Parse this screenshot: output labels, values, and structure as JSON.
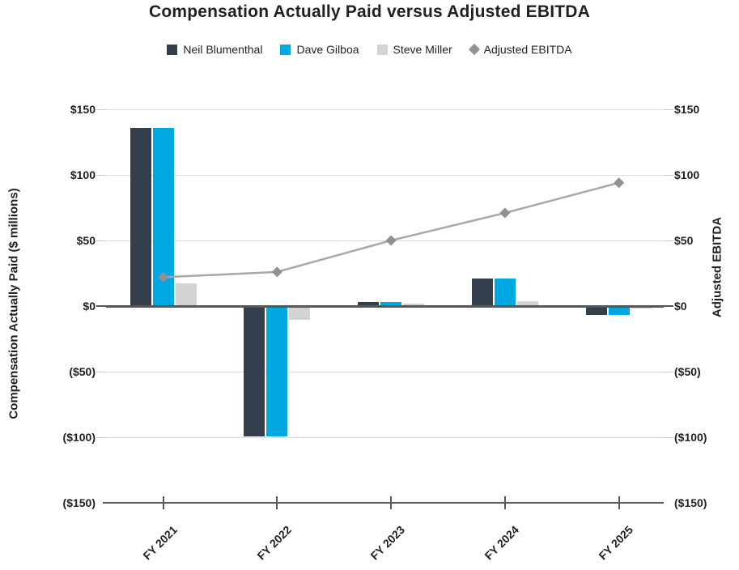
{
  "title": "Compensation Actually Paid versus Adjusted EBITDA",
  "legend": {
    "items": [
      {
        "label": "Neil Blumenthal",
        "marker": "square",
        "color": "#333F4D"
      },
      {
        "label": "Dave Gilboa",
        "marker": "square",
        "color": "#00A8E1"
      },
      {
        "label": "Steve Miller",
        "marker": "square",
        "color": "#D1D3D4"
      },
      {
        "label": "Adjusted EBITDA",
        "marker": "diamond",
        "color": "#919396"
      }
    ]
  },
  "chart_data": {
    "type": "bar",
    "subtype": "grouped-bar-with-line-overlay",
    "title": "Compensation Actually Paid versus Adjusted EBITDA",
    "categories": [
      "FY 2021",
      "FY 2022",
      "FY 2023",
      "FY 2024",
      "FY 2025"
    ],
    "bar_series": [
      {
        "name": "Neil Blumenthal",
        "color": "#333F4D",
        "values": [
          136,
          -99,
          3,
          21,
          -6
        ]
      },
      {
        "name": "Dave Gilboa",
        "color": "#00A8E1",
        "values": [
          136,
          -99,
          3,
          21,
          -6
        ]
      },
      {
        "name": "Steve Miller",
        "color": "#D1D3D4",
        "values": [
          17,
          -10,
          2,
          4,
          -1
        ]
      }
    ],
    "line_series": [
      {
        "name": "Adjusted EBITDA",
        "color": "#A7A9AC",
        "marker": "diamond",
        "marker_color": "#8E9093",
        "values": [
          22,
          26,
          50,
          71,
          94
        ]
      }
    ],
    "y_left": {
      "label": "Compensation Actually Paid ($ millions)",
      "min": -150,
      "max": 150,
      "ticks": [
        {
          "label": "$150",
          "value": 150
        },
        {
          "label": "$100",
          "value": 100
        },
        {
          "label": "$50",
          "value": 50
        },
        {
          "label": "$0",
          "value": 0
        },
        {
          "label": "($50)",
          "value": -50
        },
        {
          "label": "($100)",
          "value": -100
        },
        {
          "label": "($150)",
          "value": -150
        }
      ]
    },
    "y_right": {
      "label": "Adjusted EBITDA",
      "min": -150,
      "max": 150,
      "ticks": [
        {
          "label": "$150",
          "value": 150
        },
        {
          "label": "$100",
          "value": 100
        },
        {
          "label": "$50",
          "value": 50
        },
        {
          "label": "$0",
          "value": 0
        },
        {
          "label": "($50)",
          "value": -50
        },
        {
          "label": "($100)",
          "value": -100
        },
        {
          "label": "($150)",
          "value": -150
        }
      ]
    },
    "grid": true,
    "legend_position": "top"
  },
  "colors": {
    "text": "#231F20",
    "gridline": "#DBDCDD",
    "zero_line": "#55575A",
    "axis": "#58595B",
    "background": "#FFFFFF"
  }
}
